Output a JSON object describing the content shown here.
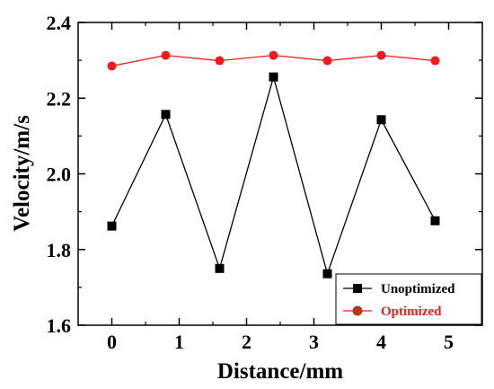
{
  "chart_data": {
    "type": "line",
    "xlabel": "Distance/mm",
    "ylabel": "Velocity/m/s",
    "xlim": [
      -0.5,
      5.5
    ],
    "ylim": [
      1.6,
      2.4
    ],
    "x_ticks": [
      "0",
      "1",
      "2",
      "3",
      "4",
      "5"
    ],
    "y_ticks": [
      "1.6",
      "1.8",
      "2.0",
      "2.2",
      "2.4"
    ],
    "legend_position": "bottom-right",
    "grid": false,
    "series": [
      {
        "name": "Unoptimized",
        "color": "#000000",
        "marker": "square",
        "x": [
          0,
          0.8,
          1.6,
          2.4,
          3.2,
          4.0,
          4.8
        ],
        "y": [
          1.862,
          2.157,
          1.75,
          2.256,
          1.736,
          2.143,
          1.876
        ]
      },
      {
        "name": "Optimized",
        "color": "#ee1c1c",
        "marker": "circle",
        "x": [
          0,
          0.8,
          1.6,
          2.4,
          3.2,
          4.0,
          4.8
        ],
        "y": [
          2.285,
          2.313,
          2.299,
          2.313,
          2.299,
          2.313,
          2.299
        ]
      }
    ]
  }
}
